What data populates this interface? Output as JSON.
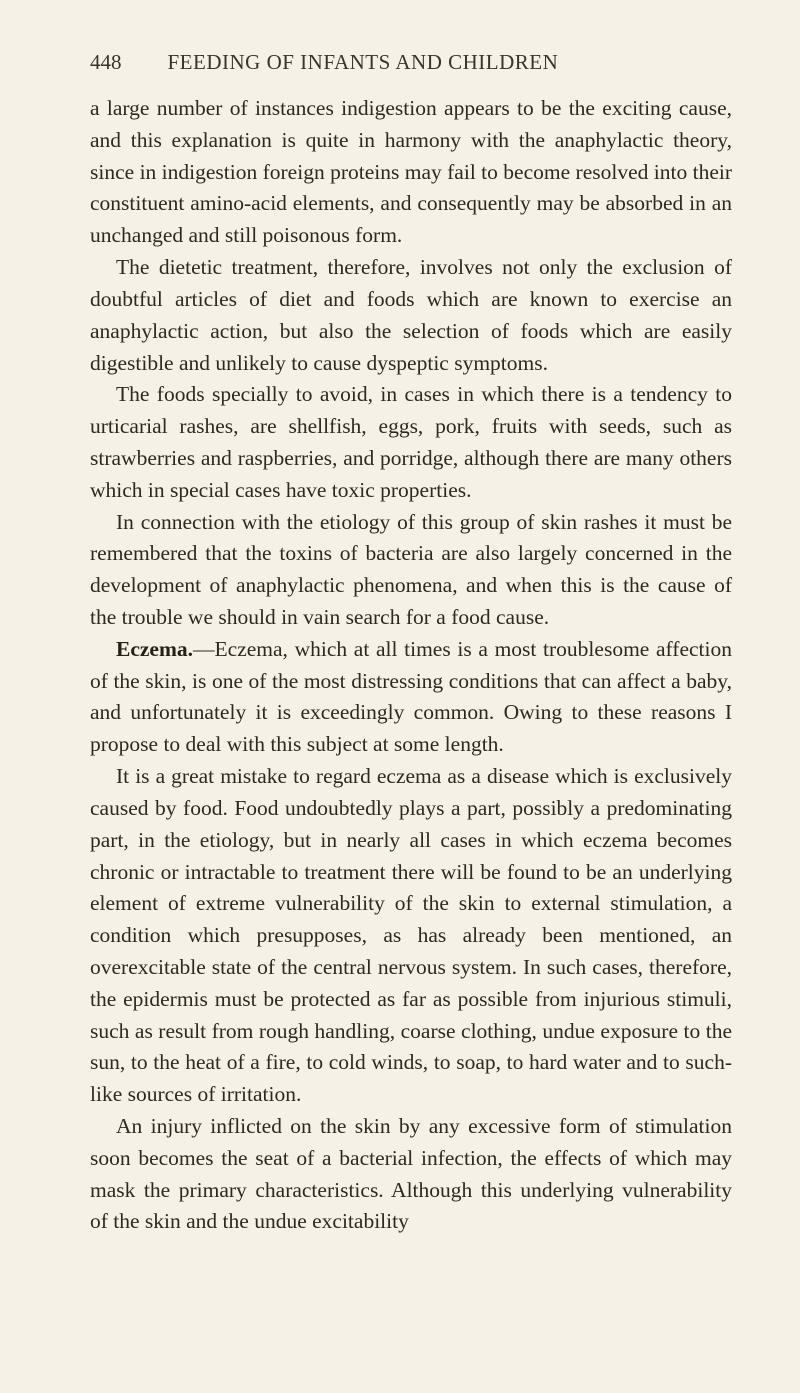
{
  "header": {
    "page_number": "448",
    "running_title": "FEEDING OF INFANTS AND CHILDREN"
  },
  "paragraphs": {
    "p1": "a large number of instances indigestion appears to be the exciting cause, and this explanation is quite in harmony with the anaphy­lactic theory, since in indigestion foreign proteins may fail to become resolved into their constituent amino-acid elements, and consequently may be absorbed in an unchanged and still poisonous form.",
    "p2": "The dietetic treatment, therefore, involves not only the exclusion of doubtful articles of diet and foods which are known to exercise an anaphylactic action, but also the selection of foods which are easily digestible and unlikely to cause dyspeptic symptoms.",
    "p3": "The foods specially to avoid, in cases in which there is a tendency to urticarial rashes, are shellfish, eggs, pork, fruits with seeds, such as strawberries and raspberries, and porridge, although there are many others which in special cases have toxic properties.",
    "p4": "In connection with the etiology of this group of skin rashes it must be remembered that the toxins of bacteria are also largely concerned in the development of anaphylactic phenomena, and when this is the cause of the trouble we should in vain search for a food cause.",
    "p5_label": "Eczema.",
    "p5": "—Eczema, which at all times is a most troublesome affection of the skin, is one of the most distressing conditions that can affect a baby, and unfortunately it is exceedingly common. Owing to these reasons I propose to deal with this subject at some length.",
    "p6": "It is a great mistake to regard eczema as a disease which is exclusively caused by food. Food undoubtedly plays a part, possibly a predominating part, in the etiology, but in nearly all cases in which eczema becomes chronic or intractable to treatment there will be found to be an underlying element of extreme vulner­ability of the skin to external stimulation, a condition which pre­supposes, as has already been mentioned, an overexcitable state of the central nervous system. In such cases, therefore, the epidermis must be protected as far as possible from injurious stimuli, such as result from rough handling, coarse clothing, undue exposure to the sun, to the heat of a fire, to cold winds, to soap, to hard water and to such-like sources of irritation.",
    "p7": "An injury inflicted on the skin by any excessive form of stimula­tion soon becomes the seat of a bacterial infection, the effects of which may mask the primary characteristics. Although this underlying vulnerability of the skin and the undue excitability"
  }
}
